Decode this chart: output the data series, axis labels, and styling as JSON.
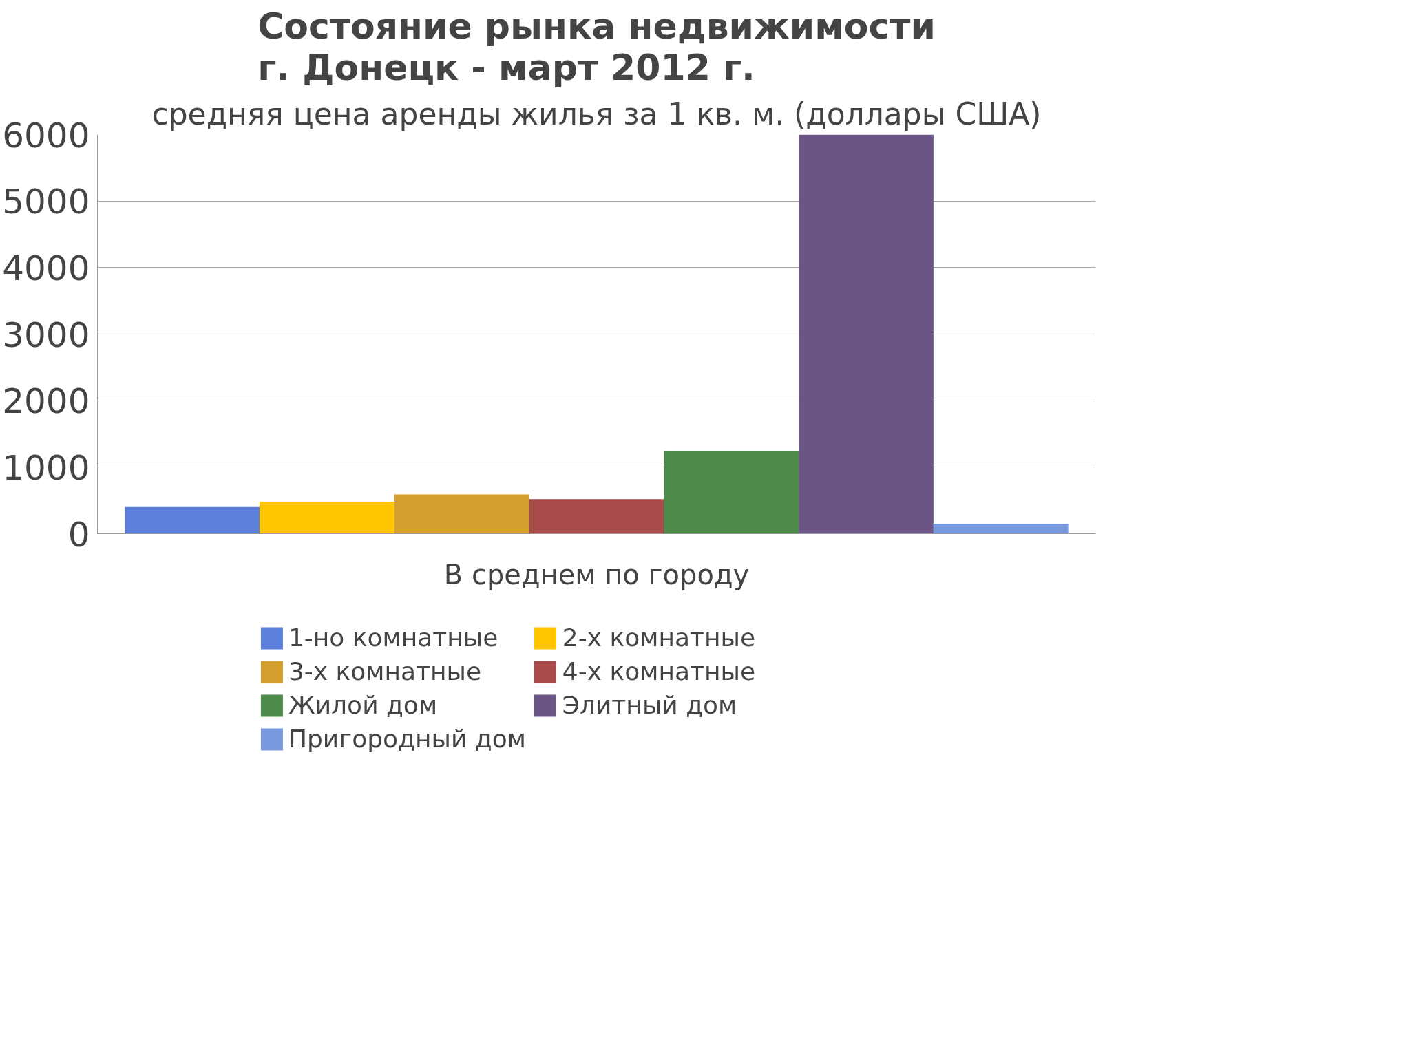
{
  "chart_data": {
    "type": "bar",
    "title": "Состояние рынка недвижимости\nг. Донецк - март 2012 г.",
    "subtitle": "средняя цена аренды жилья за 1 кв. м. (доллары США)",
    "categories": [
      "В среднем по городу"
    ],
    "series": [
      {
        "name": "1-но комнатные",
        "color": "#5b7fdb",
        "values": [
          400
        ]
      },
      {
        "name": "2-х комнатные",
        "color": "#ffc600",
        "values": [
          480
        ]
      },
      {
        "name": "3-х комнатные",
        "color": "#d4a030",
        "values": [
          590
        ]
      },
      {
        "name": "4-х комнатные",
        "color": "#a94a4a",
        "values": [
          520
        ]
      },
      {
        "name": "Жилой дом",
        "color": "#4e8a4a",
        "values": [
          1240
        ]
      },
      {
        "name": "Элитный дом",
        "color": "#6b5585",
        "values": [
          6000
        ]
      },
      {
        "name": "Пригородный дом",
        "color": "#7a9ae0",
        "values": [
          150
        ]
      }
    ],
    "ylim": [
      0,
      6000
    ],
    "yticks": [
      0,
      1000,
      2000,
      3000,
      4000,
      5000,
      6000
    ],
    "grid": "y",
    "legend": "bottom"
  }
}
